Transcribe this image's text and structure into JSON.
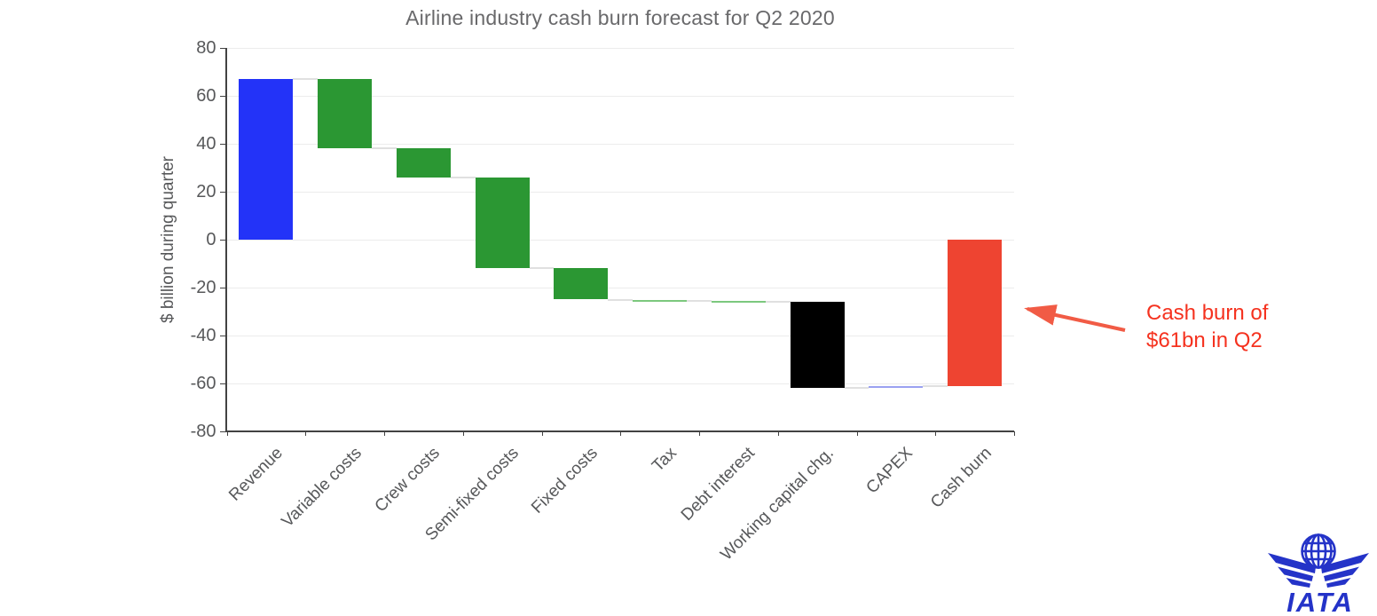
{
  "chart_data": {
    "type": "waterfall",
    "title": "Airline industry cash burn forecast for Q2 2020",
    "xlabel": "",
    "ylabel": "$ billion during quarter",
    "ylim": [
      -80,
      80
    ],
    "yticks": [
      80,
      60,
      40,
      20,
      0,
      -20,
      -40,
      -60,
      -80
    ],
    "grid": true,
    "legend": "none",
    "unit": "$ billion",
    "categories": [
      "Revenue",
      "Variable costs",
      "Crew costs",
      "Semi-fixed costs",
      "Fixed costs",
      "Tax",
      "Debt interest",
      "Working capital chg.",
      "CAPEX",
      "Cash burn"
    ],
    "bars": [
      {
        "label": "Revenue",
        "change": 67,
        "start": 0,
        "end": 67,
        "color": "#2333f8"
      },
      {
        "label": "Variable costs",
        "change": -29,
        "start": 67,
        "end": 38,
        "color": "#2b9733"
      },
      {
        "label": "Crew costs",
        "change": -12,
        "start": 38,
        "end": 26,
        "color": "#2b9733"
      },
      {
        "label": "Semi-fixed costs",
        "change": -38,
        "start": 26,
        "end": -12,
        "color": "#2b9733"
      },
      {
        "label": "Fixed costs",
        "change": -13,
        "start": -12,
        "end": -25,
        "color": "#2b9733"
      },
      {
        "label": "Tax",
        "change": -0.5,
        "start": -25,
        "end": -25.5,
        "color": "#7cc87e"
      },
      {
        "label": "Debt interest",
        "change": -0.5,
        "start": -25.5,
        "end": -26,
        "color": "#7cc87e"
      },
      {
        "label": "Working capital chg.",
        "change": -36,
        "start": -26,
        "end": -62,
        "color": "#000000"
      },
      {
        "label": "CAPEX",
        "change": 1,
        "start": -62,
        "end": -61,
        "color": "#9aa1f1"
      },
      {
        "label": "Cash burn",
        "change": -61,
        "start": 0,
        "end": -61,
        "color": "#ee4431",
        "is_total": true
      }
    ],
    "annotation": {
      "line1": "Cash burn of",
      "line2": "$61bn in Q2",
      "color": "#f5321f",
      "arrow_color": "#f15b45",
      "points_to": "Cash burn"
    },
    "colors": {
      "revenue_bar": "#2333f8",
      "cost_bar": "#2b9733",
      "small_cost_bar": "#7cc87e",
      "working_capital_bar": "#000000",
      "capex_bar": "#9aa1f1",
      "total_bar": "#ee4431",
      "gridline": "#ececec",
      "axis": "#424242",
      "tick_text": "#57585a",
      "title_text": "#69696b"
    }
  },
  "branding": {
    "logo_text": "IATA",
    "logo_color": "#2433c8"
  }
}
